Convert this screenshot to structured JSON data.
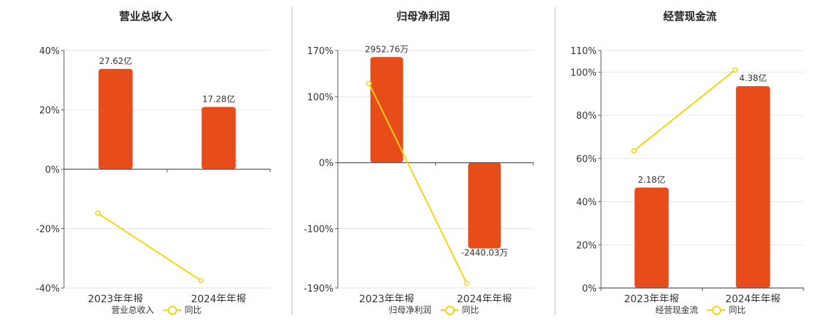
{
  "colors": {
    "bar": "#e84c1b",
    "line": "#f5d40f",
    "axis": "#555555",
    "grid": "#e6e6e6",
    "text": "#333333"
  },
  "chart_data": [
    {
      "type": "bar",
      "title": "营业总收入",
      "categories": [
        "2023年年报",
        "2024年年报"
      ],
      "series": [
        {
          "name": "营业总收入",
          "type": "bar",
          "values": [
            33.8,
            21.0
          ],
          "labels": [
            "27.62亿",
            "17.28亿"
          ]
        },
        {
          "name": "同比",
          "type": "line",
          "values": [
            -14.8,
            -37.5
          ]
        }
      ],
      "yticks": [
        -40,
        -20,
        0,
        20,
        40
      ],
      "ytick_labels": [
        "-40%",
        "-20%",
        "0%",
        "20%",
        "40%"
      ],
      "ylim": [
        -40,
        40
      ],
      "grid": true,
      "legend": "bottom"
    },
    {
      "type": "bar",
      "title": "归母净利润",
      "categories": [
        "2023年年报",
        "2024年年报"
      ],
      "series": [
        {
          "name": "归母净利润",
          "type": "bar",
          "values": [
            160,
            -130
          ],
          "labels": [
            "2952.76万",
            "-2440.03万"
          ]
        },
        {
          "name": "同比",
          "type": "line",
          "values": [
            120,
            -183
          ]
        }
      ],
      "yticks": [
        -190,
        -100,
        0,
        100,
        170
      ],
      "ytick_labels": [
        "-190%",
        "-100%",
        "0%",
        "100%",
        "170%"
      ],
      "ylim": [
        -190,
        170
      ],
      "grid": true,
      "legend": "bottom"
    },
    {
      "type": "bar",
      "title": "经营现金流",
      "categories": [
        "2023年年报",
        "2024年年报"
      ],
      "series": [
        {
          "name": "经营现金流",
          "type": "bar",
          "values": [
            46.5,
            93.5
          ],
          "labels": [
            "2.18亿",
            "4.38亿"
          ]
        },
        {
          "name": "同比",
          "type": "line",
          "values": [
            63.5,
            101
          ]
        }
      ],
      "yticks": [
        0,
        20,
        40,
        60,
        80,
        100,
        110
      ],
      "ytick_labels": [
        "0%",
        "20%",
        "40%",
        "60%",
        "80%",
        "100%",
        "110%"
      ],
      "ylim": [
        0,
        110
      ],
      "grid": true,
      "legend": "bottom"
    }
  ]
}
